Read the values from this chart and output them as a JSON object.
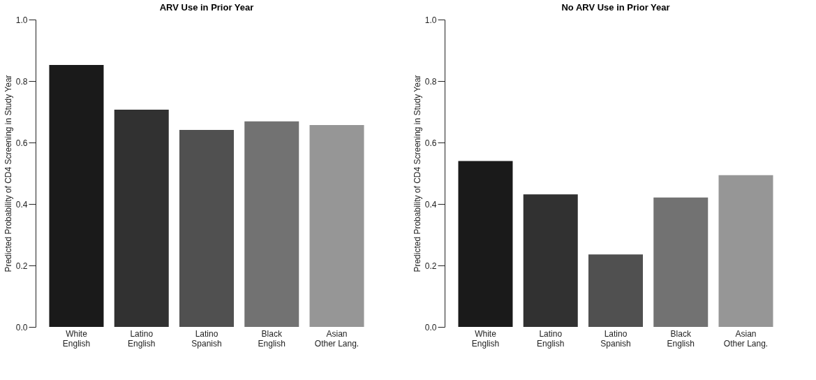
{
  "chart_data": [
    {
      "type": "bar",
      "title": "ARV Use in Prior Year",
      "ylabel": "Predicted Probability of CD4 Screening in Study Year",
      "categories": [
        "White\nEnglish",
        "Latino\nEnglish",
        "Latino\nSpanish",
        "Black\nEnglish",
        "Asian\nOther Lang."
      ],
      "values": [
        0.852,
        0.707,
        0.641,
        0.669,
        0.657
      ],
      "colors": [
        "#1a1a1a",
        "#313131",
        "#505050",
        "#727272",
        "#969696"
      ],
      "ylim": [
        0,
        1.0
      ],
      "yticks": [
        {
          "value": 0,
          "label": "0.0"
        },
        {
          "value": 0.2,
          "label": "0.2"
        },
        {
          "value": 0.4,
          "label": "0.4"
        },
        {
          "value": 0.6,
          "label": "0.6"
        },
        {
          "value": 0.8,
          "label": "0.8"
        },
        {
          "value": 1.0,
          "label": "1.0"
        }
      ],
      "grid": false
    },
    {
      "type": "bar",
      "title": "No ARV Use in Prior Year",
      "ylabel": "Predicted Probability of CD4 Screening in Study Year",
      "categories": [
        "White\nEnglish",
        "Latino\nEnglish",
        "Latino\nSpanish",
        "Black\nEnglish",
        "Asian\nOther Lang."
      ],
      "values": [
        0.54,
        0.431,
        0.236,
        0.421,
        0.494
      ],
      "colors": [
        "#1a1a1a",
        "#313131",
        "#505050",
        "#727272",
        "#969696"
      ],
      "ylim": [
        0,
        1.0
      ],
      "yticks": [
        {
          "value": 0,
          "label": "0.0"
        },
        {
          "value": 0.2,
          "label": "0.2"
        },
        {
          "value": 0.4,
          "label": "0.4"
        },
        {
          "value": 0.6,
          "label": "0.6"
        },
        {
          "value": 0.8,
          "label": "0.8"
        },
        {
          "value": 1.0,
          "label": "1.0"
        }
      ],
      "grid": false
    }
  ]
}
